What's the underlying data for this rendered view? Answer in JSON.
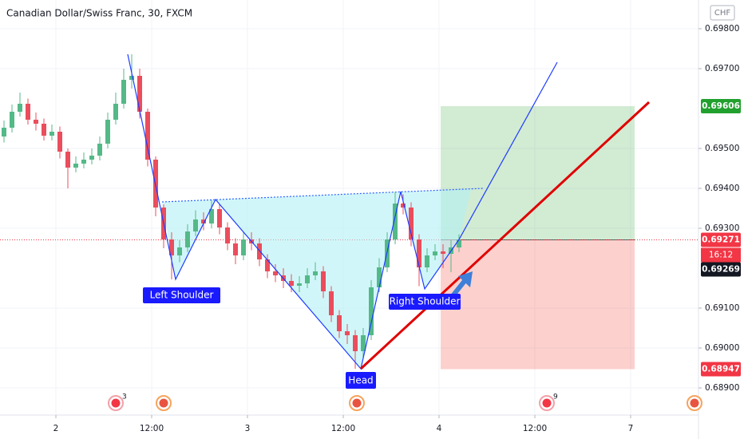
{
  "chart_data": {
    "type": "candlestick",
    "title": "Canadian Dollar/Swiss Franc, 30, FXCM",
    "currency": "CHF",
    "x": [
      -6.5,
      -5.5,
      -4.5,
      -3.5,
      -2.5,
      -1.5,
      -0.5,
      0.5,
      1.5,
      2.5,
      3.5,
      4.5,
      5.5,
      6.5,
      7.5,
      8.5,
      9.5,
      10.5,
      11.5,
      12.5,
      13.5,
      14.5,
      15.5,
      16.5,
      17.5,
      18.5,
      19.5,
      20.5,
      21.5,
      22.5,
      23.5,
      24.5,
      25.5,
      26.5,
      27.5,
      28.5,
      29.5,
      30.5,
      31.5,
      32.5,
      33.5,
      34.5,
      35.5,
      36.5,
      37.5,
      38.5,
      39.5,
      40.5,
      41.5,
      42.5,
      43.5,
      44.5,
      45.5,
      46.5,
      47.5,
      48.5,
      49.5,
      50.5
    ],
    "open": [
      0.6953,
      0.69552,
      0.69592,
      0.69612,
      0.69572,
      0.69562,
      0.69532,
      0.69542,
      0.69492,
      0.69452,
      0.69462,
      0.69472,
      0.69482,
      0.69512,
      0.69572,
      0.69612,
      0.69672,
      0.69682,
      0.69592,
      0.69472,
      0.69352,
      0.69272,
      0.69232,
      0.69252,
      0.69292,
      0.69322,
      0.69312,
      0.69348,
      0.69302,
      0.69262,
      0.69232,
      0.69272,
      0.69262,
      0.69222,
      0.69192,
      0.69182,
      0.69168,
      0.69156,
      0.69162,
      0.69182,
      0.69192,
      0.69142,
      0.69082,
      0.69042,
      0.69032,
      0.68992,
      0.69032,
      0.69152,
      0.69202,
      0.69272,
      0.69362,
      0.69352,
      0.69272,
      0.69202,
      0.69232,
      0.69242,
      0.69236,
      0.69252
    ],
    "high": [
      0.6957,
      0.6961,
      0.6964,
      0.69625,
      0.6959,
      0.69575,
      0.6956,
      0.69555,
      0.695,
      0.6948,
      0.6949,
      0.695,
      0.6953,
      0.6959,
      0.6964,
      0.697,
      0.69736,
      0.697,
      0.696,
      0.6948,
      0.6936,
      0.6929,
      0.6927,
      0.6931,
      0.69345,
      0.6934,
      0.6937,
      0.6936,
      0.69315,
      0.69275,
      0.6929,
      0.6929,
      0.69275,
      0.69235,
      0.6921,
      0.692,
      0.69185,
      0.6918,
      0.692,
      0.69215,
      0.69205,
      0.69155,
      0.69095,
      0.6906,
      0.69045,
      0.6905,
      0.6917,
      0.69225,
      0.6929,
      0.69392,
      0.69385,
      0.69365,
      0.69285,
      0.6925,
      0.6926,
      0.6926,
      0.6927,
      0.69285
    ],
    "low": [
      0.69515,
      0.6954,
      0.6958,
      0.6956,
      0.69545,
      0.6952,
      0.6952,
      0.69475,
      0.694,
      0.6944,
      0.6945,
      0.6946,
      0.6947,
      0.695,
      0.6956,
      0.696,
      0.6965,
      0.69575,
      0.69455,
      0.6933,
      0.6925,
      0.69172,
      0.69215,
      0.6924,
      0.6928,
      0.69295,
      0.693,
      0.69285,
      0.69245,
      0.6921,
      0.6922,
      0.69245,
      0.69205,
      0.69175,
      0.69165,
      0.6915,
      0.6914,
      0.6914,
      0.6915,
      0.6917,
      0.69125,
      0.69065,
      0.69025,
      0.6901,
      0.68948,
      0.68975,
      0.6902,
      0.6914,
      0.6919,
      0.6926,
      0.69335,
      0.69255,
      0.69155,
      0.6919,
      0.6922,
      0.692,
      0.6919,
      0.6924
    ],
    "close": [
      0.69552,
      0.69592,
      0.69612,
      0.69572,
      0.69562,
      0.69532,
      0.69542,
      0.69492,
      0.69452,
      0.69462,
      0.69472,
      0.69482,
      0.69512,
      0.69572,
      0.69612,
      0.69672,
      0.69682,
      0.69592,
      0.69472,
      0.69352,
      0.69272,
      0.69232,
      0.69252,
      0.69292,
      0.69322,
      0.69312,
      0.69348,
      0.69302,
      0.69262,
      0.69232,
      0.69272,
      0.69262,
      0.69222,
      0.69192,
      0.69182,
      0.69168,
      0.69156,
      0.69162,
      0.69182,
      0.69192,
      0.69142,
      0.69082,
      0.69042,
      0.69032,
      0.68992,
      0.69032,
      0.69152,
      0.69202,
      0.69272,
      0.69362,
      0.69352,
      0.69272,
      0.69202,
      0.69232,
      0.69242,
      0.69236,
      0.69252,
      0.69271
    ],
    "up_color": "#53b987",
    "down_color": "#eb4d5c",
    "xlim": [
      -7,
      80.5
    ],
    "xticks": [
      {
        "value": 0,
        "label": "2"
      },
      {
        "value": 12,
        "label": "12:00"
      },
      {
        "value": 24,
        "label": "3"
      },
      {
        "value": 36,
        "label": "12:00"
      },
      {
        "value": 48,
        "label": "4"
      },
      {
        "value": 60,
        "label": "12:00"
      },
      {
        "value": 72,
        "label": "7"
      }
    ],
    "ylim": [
      0.68832,
      0.69872
    ],
    "yticks": [
      {
        "value": 0.698,
        "label": "0.69800"
      },
      {
        "value": 0.697,
        "label": "0.69700"
      },
      {
        "value": 0.695,
        "label": "0.69500"
      },
      {
        "value": 0.694,
        "label": "0.69400"
      },
      {
        "value": 0.693,
        "label": "0.69300"
      },
      {
        "value": 0.691,
        "label": "0.69100"
      },
      {
        "value": 0.69,
        "label": "0.69000"
      },
      {
        "value": 0.689,
        "label": "0.68900"
      }
    ],
    "grid": true,
    "price_labels": [
      {
        "value": 0.69606,
        "color": "#22a02e"
      },
      {
        "value": 0.69271,
        "color": "#f23645"
      },
      {
        "value": 0.69269,
        "color": "#131722"
      },
      {
        "value": 0.68947,
        "color": "#f23645"
      }
    ],
    "countdown": "16:12",
    "annotations": [
      "Left Shoulder",
      "Head",
      "Right Shoulder"
    ],
    "events": [
      {
        "x": 7.5,
        "count": 3
      },
      {
        "x": 13.5
      },
      {
        "x": 37.7
      },
      {
        "x": 61.5,
        "count": 9
      },
      {
        "x": 80
      }
    ]
  }
}
